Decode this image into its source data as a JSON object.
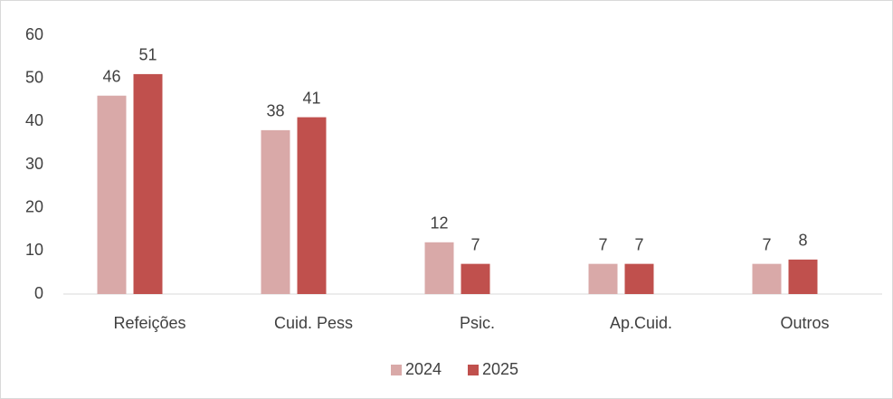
{
  "chart_data": {
    "type": "bar",
    "categories": [
      "Refeições",
      "Cuid. Pess",
      "Psic.",
      "Ap.Cuid.",
      "Outros"
    ],
    "series": [
      {
        "name": "2024",
        "color": "#d9a9a8",
        "values": [
          46,
          38,
          12,
          7,
          7
        ]
      },
      {
        "name": "2025",
        "color": "#c0504d",
        "values": [
          51,
          41,
          7,
          7,
          8
        ]
      }
    ],
    "ylim": [
      0,
      60
    ],
    "yticks": [
      0,
      10,
      20,
      30,
      40,
      50,
      60
    ],
    "grid": false,
    "legend": "bottom",
    "data_labels": true
  }
}
